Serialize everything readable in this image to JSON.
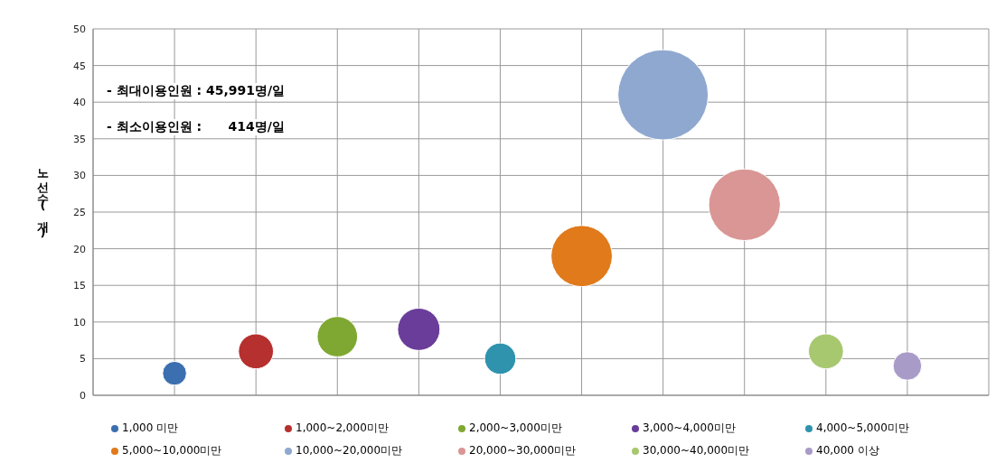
{
  "chart_data": {
    "type": "bubble",
    "ylabel": "노선수(개)",
    "categories": [
      null,
      null,
      null,
      null,
      null,
      null,
      null,
      null,
      null,
      null
    ],
    "ylim": [
      0,
      50
    ],
    "yticks": [
      0,
      5,
      10,
      15,
      20,
      25,
      30,
      35,
      40,
      45,
      50
    ],
    "grid": true,
    "legend": "bottom",
    "annotations": [
      "- 최대이용인원 : 45,991명/일",
      "- 최소이용인원 :      414명/일"
    ],
    "series": [
      {
        "name": "1,000 미만",
        "color": "#3b6fb0",
        "values": [
          3,
          null,
          null,
          null,
          null,
          null,
          null,
          null,
          null,
          null
        ],
        "sizes": [
          0.07,
          null,
          null,
          null,
          null,
          null,
          null,
          null,
          null,
          null
        ]
      },
      {
        "name": "1,000~2,000미만",
        "color": "#b5302e",
        "values": [
          null,
          6,
          null,
          null,
          null,
          null,
          null,
          null,
          null,
          null
        ],
        "sizes": [
          null,
          0.15,
          null,
          null,
          null,
          null,
          null,
          null,
          null,
          null
        ]
      },
      {
        "name": "2,000~3,000미만",
        "color": "#7fa832",
        "values": [
          null,
          null,
          8,
          null,
          null,
          null,
          null,
          null,
          null,
          null
        ],
        "sizes": [
          null,
          null,
          0.2,
          null,
          null,
          null,
          null,
          null,
          null,
          null
        ]
      },
      {
        "name": "3,000~4,000미만",
        "color": "#6a3d9a",
        "values": [
          null,
          null,
          null,
          9,
          null,
          null,
          null,
          null,
          null,
          null
        ],
        "sizes": [
          null,
          null,
          null,
          0.22,
          null,
          null,
          null,
          null,
          null,
          null
        ]
      },
      {
        "name": "4,000~5,000미만",
        "color": "#2f93ae",
        "values": [
          null,
          null,
          null,
          null,
          5,
          null,
          null,
          null,
          null,
          null
        ],
        "sizes": [
          null,
          null,
          null,
          null,
          0.12,
          null,
          null,
          null,
          null,
          null
        ]
      },
      {
        "name": "5,000~10,000미만",
        "color": "#e07a1a",
        "values": [
          null,
          null,
          null,
          null,
          null,
          19,
          null,
          null,
          null,
          null
        ],
        "sizes": [
          null,
          null,
          null,
          null,
          null,
          0.46,
          null,
          null,
          null,
          null
        ]
      },
      {
        "name": "10,000~20,000미만",
        "color": "#8fa8d0",
        "values": [
          null,
          null,
          null,
          null,
          null,
          null,
          41,
          null,
          null,
          null
        ],
        "sizes": [
          null,
          null,
          null,
          null,
          null,
          null,
          1,
          null,
          null,
          null
        ]
      },
      {
        "name": "20,000~30,000미만",
        "color": "#d99694",
        "values": [
          null,
          null,
          null,
          null,
          null,
          null,
          null,
          26,
          null,
          null
        ],
        "sizes": [
          null,
          null,
          null,
          null,
          null,
          null,
          null,
          0.63,
          null,
          null
        ]
      },
      {
        "name": "30,000~40,000미만",
        "color": "#a8c870",
        "values": [
          null,
          null,
          null,
          null,
          null,
          null,
          null,
          null,
          6,
          null
        ],
        "sizes": [
          null,
          null,
          null,
          null,
          null,
          null,
          null,
          null,
          0.15,
          null
        ]
      },
      {
        "name": "40,000 이상",
        "color": "#a99bc8",
        "values": [
          null,
          null,
          null,
          null,
          null,
          null,
          null,
          null,
          null,
          4
        ],
        "sizes": [
          null,
          null,
          null,
          null,
          null,
          null,
          null,
          null,
          null,
          0.1
        ]
      }
    ]
  }
}
